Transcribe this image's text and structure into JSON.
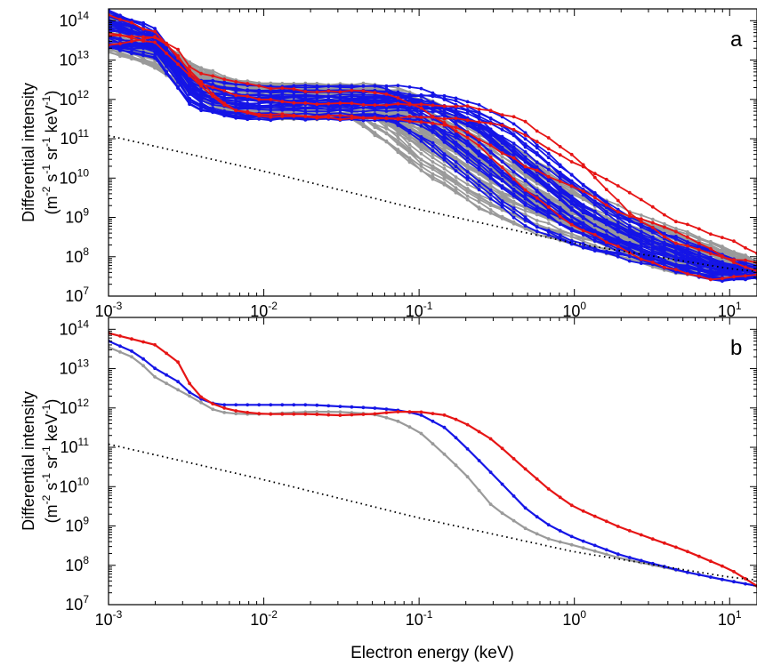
{
  "figure": {
    "xlabel": "Electron energy (keV)",
    "colors": {
      "gray": "#9a9a9a",
      "blue": "#1515e6",
      "red": "#e61515",
      "dotted": "#000000"
    }
  },
  "chart_data": [
    {
      "type": "line",
      "panel_label": "a",
      "xscale": "log",
      "yscale": "log",
      "xlim": [
        0.001,
        15
      ],
      "ylim": [
        10000000.0,
        200000000000000.0
      ],
      "x_ticks": [
        0.001,
        0.01,
        0.1,
        1,
        10
      ],
      "x_tick_labels": [
        [
          "10",
          "-3"
        ],
        [
          "10",
          "-2"
        ],
        [
          "10",
          "-1"
        ],
        [
          "10",
          "0"
        ],
        [
          "10",
          "1"
        ]
      ],
      "y_ticks": [
        10000000.0,
        100000000.0,
        1000000000.0,
        10000000000.0,
        100000000000.0,
        1000000000000.0,
        10000000000000.0,
        100000000000000.0
      ],
      "y_tick_labels": [
        [
          "10",
          "7"
        ],
        [
          "10",
          "8"
        ],
        [
          "10",
          "9"
        ],
        [
          "10",
          "10"
        ],
        [
          "10",
          "11"
        ],
        [
          "10",
          "12"
        ],
        [
          "10",
          "13"
        ],
        [
          "10",
          "14"
        ]
      ],
      "ylabel_line1": "Differential intensity",
      "ylabel_line2": [
        [
          "(m",
          ""
        ],
        [
          "-2",
          " s"
        ],
        [
          "-1",
          " sr"
        ],
        [
          "-1",
          " keV"
        ],
        [
          "-1",
          ")"
        ]
      ],
      "ylabel": "Differential intensity (m-2 s-1 sr-1 keV-1)",
      "grid": false,
      "series_groups": [
        {
          "color": "gray",
          "count": 55
        },
        {
          "color": "blue",
          "count": 30
        },
        {
          "color": "red",
          "count": 4
        }
      ],
      "templates": [
        {
          "color": "gray",
          "x": [
            0.001,
            0.002,
            0.0035,
            0.006,
            0.01,
            0.02,
            0.04,
            0.05,
            0.07,
            0.1,
            0.2,
            0.5,
            1,
            2,
            5,
            10,
            15
          ],
          "y": [
            50000000000000.0,
            15000000000000.0,
            3000000000000.0,
            1200000000000.0,
            900000000000.0,
            900000000000.0,
            900000000000.0,
            600000000000.0,
            300000000000.0,
            150000000000.0,
            30000000000.0,
            3000000000.0,
            900000000.0,
            350000000.0,
            120000000.0,
            50000000.0,
            40000000.0
          ]
        },
        {
          "color": "blue",
          "x": [
            0.001,
            0.002,
            0.0035,
            0.006,
            0.01,
            0.02,
            0.04,
            0.07,
            0.1,
            0.2,
            0.5,
            1,
            2,
            5,
            10,
            15
          ],
          "y": [
            60000000000000.0,
            30000000000000.0,
            1500000000000.0,
            900000000000.0,
            800000000000.0,
            800000000000.0,
            800000000000.0,
            800000000000.0,
            700000000000.0,
            200000000000.0,
            10000000000.0,
            1200000000.0,
            300000000.0,
            80000000.0,
            40000000.0,
            30000000.0
          ]
        },
        {
          "color": "red",
          "x": [
            0.001,
            0.002,
            0.003,
            0.0035,
            0.006,
            0.01,
            0.02,
            0.05,
            0.1,
            0.2,
            0.5,
            1,
            2,
            5,
            10,
            15
          ],
          "y": [
            70000000000000.0,
            50000000000000.0,
            12000000000000.0,
            3000000000000.0,
            1300000000000.0,
            900000000000.0,
            700000000000.0,
            700000000000.0,
            600000000000.0,
            300000000000.0,
            30000000000.0,
            2000000000.0,
            400000000.0,
            100000000.0,
            50000000.0,
            35000000.0
          ]
        },
        {
          "color": "red",
          "x": [
            0.001,
            0.002,
            0.003,
            0.006,
            0.01,
            0.03,
            0.1,
            0.2,
            0.5,
            1,
            2,
            5,
            10,
            15
          ],
          "y": [
            70000000000000.0,
            50000000000000.0,
            12000000000000.0,
            1300000000000.0,
            900000000000.0,
            800000000000.0,
            700000000000.0,
            400000000000.0,
            50000000000.0,
            11000000000.0,
            1600000000.0,
            300000000.0,
            70000000.0,
            40000000.0
          ]
        }
      ],
      "reference_line": {
        "style": "dotted",
        "x": [
          0.001,
          0.01,
          0.1,
          1,
          10,
          15
        ],
        "y": [
          120000000000.0,
          15000000000.0,
          1600000000.0,
          220000000.0,
          50000000.0,
          42000000.0
        ]
      }
    },
    {
      "type": "line",
      "panel_label": "b",
      "xscale": "log",
      "yscale": "log",
      "xlim": [
        0.001,
        15
      ],
      "ylim": [
        10000000.0,
        200000000000000.0
      ],
      "x_ticks": [
        0.001,
        0.01,
        0.1,
        1,
        10
      ],
      "x_tick_labels": [
        [
          "10",
          "-3"
        ],
        [
          "10",
          "-2"
        ],
        [
          "10",
          "-1"
        ],
        [
          "10",
          "0"
        ],
        [
          "10",
          "1"
        ]
      ],
      "y_ticks": [
        10000000.0,
        100000000.0,
        1000000000.0,
        10000000000.0,
        100000000000.0,
        1000000000000.0,
        10000000000000.0,
        100000000000000.0
      ],
      "y_tick_labels": [
        [
          "10",
          "7"
        ],
        [
          "10",
          "8"
        ],
        [
          "10",
          "9"
        ],
        [
          "10",
          "10"
        ],
        [
          "10",
          "11"
        ],
        [
          "10",
          "12"
        ],
        [
          "10",
          "13"
        ],
        [
          "10",
          "14"
        ]
      ],
      "ylabel_line1": "Differential intensity",
      "ylabel_line2": [
        [
          "(m",
          ""
        ],
        [
          "-2",
          " s"
        ],
        [
          "-1",
          " sr"
        ],
        [
          "-1",
          " keV"
        ],
        [
          "-1",
          ")"
        ]
      ],
      "ylabel": "Differential intensity (m-2 s-1 sr-1 keV-1)",
      "grid": false,
      "series": [
        {
          "color": "gray",
          "x": [
            0.001,
            0.0015,
            0.002,
            0.003,
            0.0035,
            0.005,
            0.007,
            0.01,
            0.02,
            0.03,
            0.05,
            0.07,
            0.1,
            0.15,
            0.2,
            0.3,
            0.5,
            0.7,
            1,
            2,
            5,
            10,
            15
          ],
          "y": [
            35000000000000.0,
            18000000000000.0,
            6000000000000.0,
            2500000000000.0,
            1800000000000.0,
            800000000000.0,
            700000000000.0,
            700000000000.0,
            800000000000.0,
            800000000000.0,
            700000000000.0,
            500000000000.0,
            250000000000.0,
            60000000000.0,
            20000000000.0,
            3000000000.0,
            800000000.0,
            450000000.0,
            320000000.0,
            150000000.0,
            70000000.0,
            40000000.0,
            30000000.0
          ]
        },
        {
          "color": "blue",
          "x": [
            0.001,
            0.0015,
            0.002,
            0.003,
            0.0035,
            0.005,
            0.007,
            0.01,
            0.02,
            0.03,
            0.05,
            0.07,
            0.1,
            0.15,
            0.2,
            0.3,
            0.5,
            0.7,
            1,
            2,
            5,
            10,
            15
          ],
          "y": [
            50000000000000.0,
            25000000000000.0,
            10000000000000.0,
            4000000000000.0,
            2000000000000.0,
            1200000000000.0,
            1200000000000.0,
            1200000000000.0,
            1200000000000.0,
            1100000000000.0,
            1000000000000.0,
            900000000000.0,
            700000000000.0,
            300000000000.0,
            100000000000.0,
            20000000000.0,
            2500000000.0,
            1000000000.0,
            500000000.0,
            180000000.0,
            70000000.0,
            40000000.0,
            30000000.0
          ]
        },
        {
          "color": "red",
          "x": [
            0.001,
            0.002,
            0.003,
            0.0035,
            0.005,
            0.007,
            0.01,
            0.02,
            0.03,
            0.05,
            0.07,
            0.1,
            0.15,
            0.2,
            0.3,
            0.5,
            0.7,
            1,
            2,
            5,
            10,
            15
          ],
          "y": [
            80000000000000.0,
            40000000000000.0,
            12000000000000.0,
            2500000000000.0,
            1100000000000.0,
            800000000000.0,
            700000000000.0,
            700000000000.0,
            650000000000.0,
            700000000000.0,
            800000000000.0,
            800000000000.0,
            650000000000.0,
            400000000000.0,
            150000000000.0,
            25000000000.0,
            8000000000.0,
            3000000000.0,
            900000000.0,
            250000000.0,
            80000000.0,
            30000000.0
          ]
        }
      ],
      "reference_line": {
        "style": "dotted",
        "x": [
          0.001,
          0.01,
          0.1,
          1,
          10,
          15
        ],
        "y": [
          120000000000.0,
          15000000000.0,
          1600000000.0,
          220000000.0,
          50000000.0,
          42000000.0
        ]
      }
    }
  ]
}
